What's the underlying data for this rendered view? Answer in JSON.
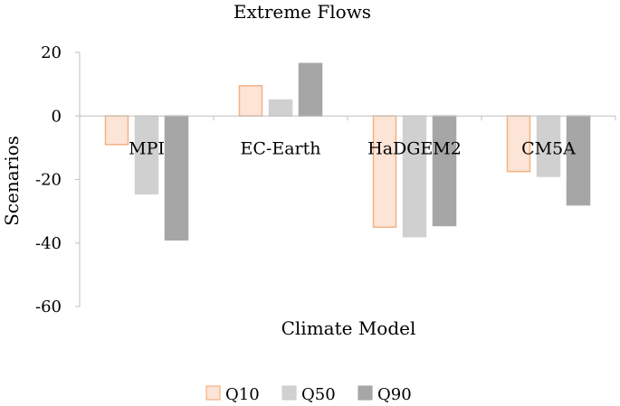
{
  "chart_data": {
    "type": "bar",
    "title": "Extreme Flows",
    "xlabel": "Climate Model",
    "ylabel": "Scenarios",
    "categories": [
      "MPI",
      "EC-Earth",
      "HaDGEM2",
      "CM5A"
    ],
    "series": [
      {
        "name": "Q10",
        "values": [
          -9,
          9.5,
          -35,
          -17.5
        ],
        "color": "#FCE4D6",
        "stroke": "#F4B183"
      },
      {
        "name": "Q50",
        "values": [
          -24.5,
          5,
          -38,
          -19
        ],
        "color": "#D0D0D0",
        "stroke": "#D0D0D0"
      },
      {
        "name": "Q90",
        "values": [
          -39,
          16.5,
          -34.5,
          -28
        ],
        "color": "#A6A6A6",
        "stroke": "#A6A6A6"
      }
    ],
    "ylim": [
      -60,
      20
    ],
    "yticks": [
      20,
      0,
      -20,
      -40,
      -60
    ],
    "ytick_labels": [
      "20",
      "0",
      "-20",
      "-40",
      "-60"
    ],
    "grid": false,
    "legend_position": "bottom"
  }
}
